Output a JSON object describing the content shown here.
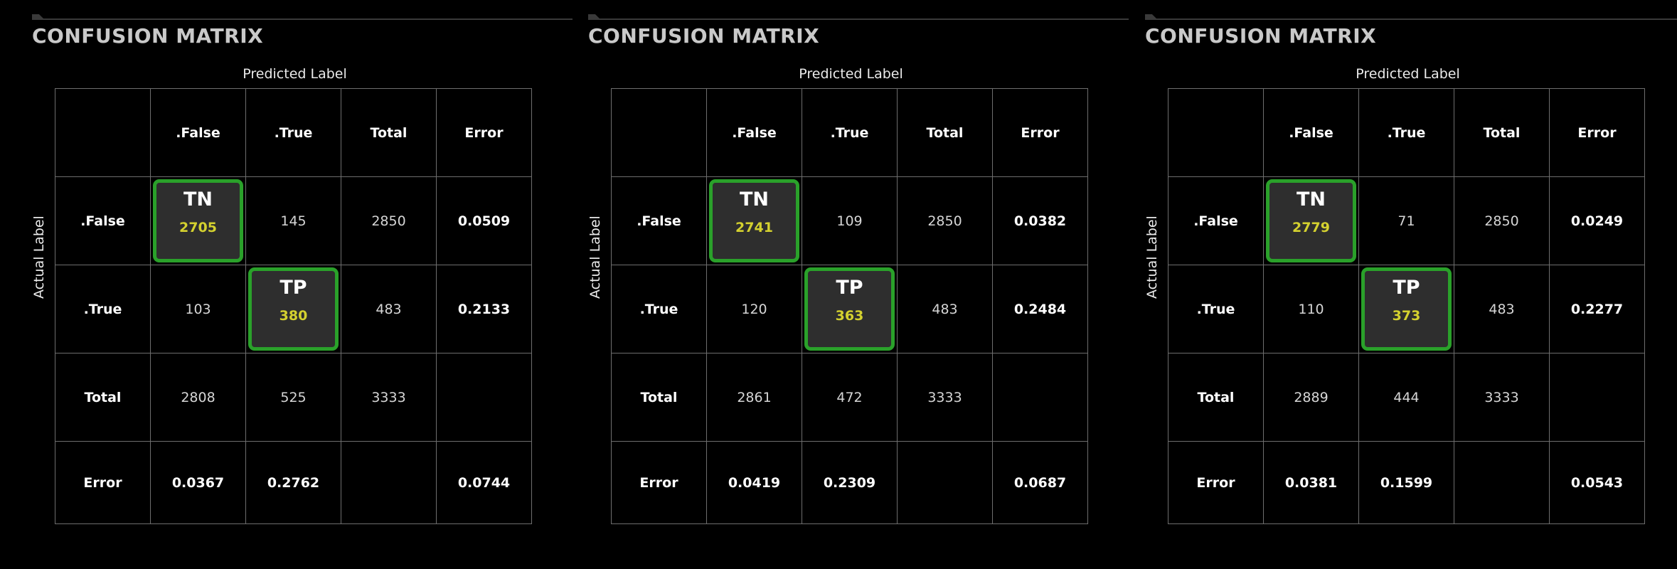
{
  "theme": {
    "background": "#000000",
    "highlight_border": "#2aa12a",
    "highlight_value": "#d4d12f"
  },
  "chart_data": [
    {
      "type": "table",
      "title": "CONFUSION MATRIX",
      "xlabel": "Predicted Label",
      "ylabel": "Actual Label",
      "columns": [
        ".False",
        ".True",
        "Total",
        "Error"
      ],
      "rows": [
        {
          "label": ".False",
          "cells": [
            "2705",
            "145",
            "2850",
            "0.0509"
          ]
        },
        {
          "label": ".True",
          "cells": [
            "103",
            "380",
            "483",
            "0.2133"
          ]
        },
        {
          "label": "Total",
          "cells": [
            "2808",
            "525",
            "3333",
            ""
          ]
        },
        {
          "label": "Error",
          "cells": [
            "0.0367",
            "0.2762",
            "",
            "0.0744"
          ]
        }
      ],
      "tn_tag": "TN",
      "tp_tag": "TP"
    },
    {
      "type": "table",
      "title": "CONFUSION MATRIX",
      "xlabel": "Predicted Label",
      "ylabel": "Actual Label",
      "columns": [
        ".False",
        ".True",
        "Total",
        "Error"
      ],
      "rows": [
        {
          "label": ".False",
          "cells": [
            "2741",
            "109",
            "2850",
            "0.0382"
          ]
        },
        {
          "label": ".True",
          "cells": [
            "120",
            "363",
            "483",
            "0.2484"
          ]
        },
        {
          "label": "Total",
          "cells": [
            "2861",
            "472",
            "3333",
            ""
          ]
        },
        {
          "label": "Error",
          "cells": [
            "0.0419",
            "0.2309",
            "",
            "0.0687"
          ]
        }
      ],
      "tn_tag": "TN",
      "tp_tag": "TP"
    },
    {
      "type": "table",
      "title": "CONFUSION MATRIX",
      "xlabel": "Predicted Label",
      "ylabel": "Actual Label",
      "columns": [
        ".False",
        ".True",
        "Total",
        "Error"
      ],
      "rows": [
        {
          "label": ".False",
          "cells": [
            "2779",
            "71",
            "2850",
            "0.0249"
          ]
        },
        {
          "label": ".True",
          "cells": [
            "110",
            "373",
            "483",
            "0.2277"
          ]
        },
        {
          "label": "Total",
          "cells": [
            "2889",
            "444",
            "3333",
            ""
          ]
        },
        {
          "label": "Error",
          "cells": [
            "0.0381",
            "0.1599",
            "",
            "0.0543"
          ]
        }
      ],
      "tn_tag": "TN",
      "tp_tag": "TP"
    }
  ]
}
